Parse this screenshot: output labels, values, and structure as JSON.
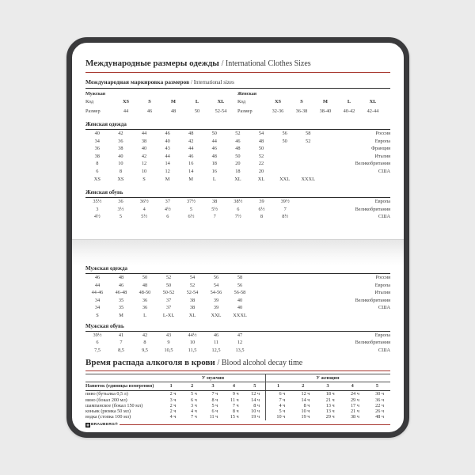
{
  "page": {
    "title_ru": "Международные размеры одежды",
    "title_en": "/ International Clothes Sizes"
  },
  "colors": {
    "accent": "#a83830",
    "card_border": "#3a3a3c",
    "background": "#ebebeb"
  },
  "marking": {
    "title_ru": "Международная маркировка размеров",
    "title_en": "/ International sizes",
    "groups": [
      {
        "gender": "Мужская",
        "code_label": "Код",
        "size_label": "Размер",
        "codes": [
          "XS",
          "S",
          "M",
          "L",
          "XL"
        ],
        "sizes": [
          "44",
          "46",
          "48",
          "50",
          "52-54"
        ]
      },
      {
        "gender": "Женская",
        "code_label": "Код",
        "size_label": "Размер",
        "codes": [
          "XS",
          "S",
          "M",
          "L",
          "XL"
        ],
        "sizes": [
          "32-36",
          "36-38",
          "38-40",
          "40-42",
          "42-44"
        ]
      }
    ]
  },
  "women_clothes": {
    "title": "Женская одежда",
    "rows": [
      {
        "values": [
          "40",
          "42",
          "44",
          "46",
          "48",
          "50",
          "52",
          "54",
          "56",
          "58"
        ],
        "country": "Россия"
      },
      {
        "values": [
          "34",
          "36",
          "38",
          "40",
          "42",
          "44",
          "46",
          "48",
          "50",
          "52"
        ],
        "country": "Европа"
      },
      {
        "values": [
          "36",
          "38",
          "40",
          "43",
          "44",
          "46",
          "48",
          "50"
        ],
        "country": "Франция"
      },
      {
        "values": [
          "38",
          "40",
          "42",
          "44",
          "46",
          "48",
          "50",
          "52"
        ],
        "country": "Италия"
      },
      {
        "values": [
          "8",
          "10",
          "12",
          "14",
          "16",
          "18",
          "20",
          "22"
        ],
        "country": "Великобритания"
      },
      {
        "values": [
          "6",
          "8",
          "10",
          "12",
          "14",
          "16",
          "18",
          "20"
        ],
        "country": "США"
      },
      {
        "values": [
          "XS",
          "XS",
          "S",
          "M",
          "M",
          "L",
          "XL",
          "XL",
          "XXL",
          "XXXL"
        ],
        "country": ""
      }
    ]
  },
  "women_shoes": {
    "title": "Женская обувь",
    "rows": [
      {
        "values": [
          "35½",
          "36",
          "36½",
          "37",
          "37½",
          "38",
          "38½",
          "39",
          "39½"
        ],
        "country": "Европа"
      },
      {
        "values": [
          "3",
          "3½",
          "4",
          "4½",
          "5",
          "5½",
          "6",
          "6½",
          "7"
        ],
        "country": "Великобритания"
      },
      {
        "values": [
          "4½",
          "5",
          "5½",
          "6",
          "6½",
          "7",
          "7½",
          "8",
          "8½"
        ],
        "country": "США"
      }
    ]
  },
  "men_clothes": {
    "title": "Мужская одежда",
    "rows": [
      {
        "values": [
          "46",
          "48",
          "50",
          "52",
          "54",
          "56",
          "58"
        ],
        "country": "Россия"
      },
      {
        "values": [
          "44",
          "46",
          "48",
          "50",
          "52",
          "54",
          "56"
        ],
        "country": "Европа"
      },
      {
        "values": [
          "44-46",
          "46-48",
          "48-50",
          "50-52",
          "52-54",
          "54-56",
          "56-58"
        ],
        "country": "Италия"
      },
      {
        "values": [
          "34",
          "35",
          "36",
          "37",
          "38",
          "39",
          "40"
        ],
        "country": "Великобритания"
      },
      {
        "values": [
          "34",
          "35",
          "36",
          "37",
          "38",
          "39",
          "40"
        ],
        "country": "США"
      },
      {
        "values": [
          "S",
          "M",
          "L",
          "L-XL",
          "XL",
          "XXL",
          "XXXL"
        ],
        "country": ""
      }
    ]
  },
  "men_shoes": {
    "title": "Мужская обувь",
    "rows": [
      {
        "values": [
          "39½",
          "41",
          "42",
          "43",
          "44½",
          "46",
          "47"
        ],
        "country": "Европа"
      },
      {
        "values": [
          "6",
          "7",
          "8",
          "9",
          "10",
          "11",
          "12"
        ],
        "country": "Великобритания"
      },
      {
        "values": [
          "7,5",
          "8,5",
          "9,5",
          "10,5",
          "11,5",
          "12,5",
          "13,5"
        ],
        "country": "США"
      }
    ]
  },
  "alcohol": {
    "title_ru": "Время распада алкоголя в крови",
    "title_en": "/ Blood alcohol decay time",
    "men_header": "У мужчин",
    "women_header": "У женщин",
    "drink_header": "Напиток (единицы измерения)",
    "unit_cols": [
      "1",
      "2",
      "3",
      "4",
      "5"
    ],
    "rows": [
      {
        "drink": "пиво (бутылка 0,5 л)",
        "men": [
          "2 ч",
          "5 ч",
          "7 ч",
          "9 ч",
          "12 ч"
        ],
        "women": [
          "6 ч",
          "12 ч",
          "18 ч",
          "24 ч",
          "30 ч"
        ]
      },
      {
        "drink": "вино (бокал 200 мл)",
        "men": [
          "3 ч",
          "6 ч",
          "8 ч",
          "11 ч",
          "14 ч"
        ],
        "women": [
          "7 ч",
          "14 ч",
          "21 ч",
          "29 ч",
          "36 ч"
        ]
      },
      {
        "drink": "шампанское (бокал 150 мл)",
        "men": [
          "2 ч",
          "3 ч",
          "5 ч",
          "7 ч",
          "8 ч"
        ],
        "women": [
          "4 ч",
          "8 ч",
          "13 ч",
          "17 ч",
          "22 ч"
        ]
      },
      {
        "drink": "коньяк (рюмка 50 мл)",
        "men": [
          "2 ч",
          "4 ч",
          "6 ч",
          "8 ч",
          "10 ч"
        ],
        "women": [
          "5 ч",
          "10 ч",
          "13 ч",
          "21 ч",
          "26 ч"
        ]
      },
      {
        "drink": "водка (стопка 100 мл)",
        "men": [
          "4 ч",
          "7 ч",
          "11 ч",
          "15 ч",
          "19 ч"
        ],
        "women": [
          "10 ч",
          "19 ч",
          "29 ч",
          "38 ч",
          "48 ч"
        ]
      }
    ]
  },
  "footer": {
    "brand": "BRAUBERG®",
    "logo_glyph": "▦"
  }
}
